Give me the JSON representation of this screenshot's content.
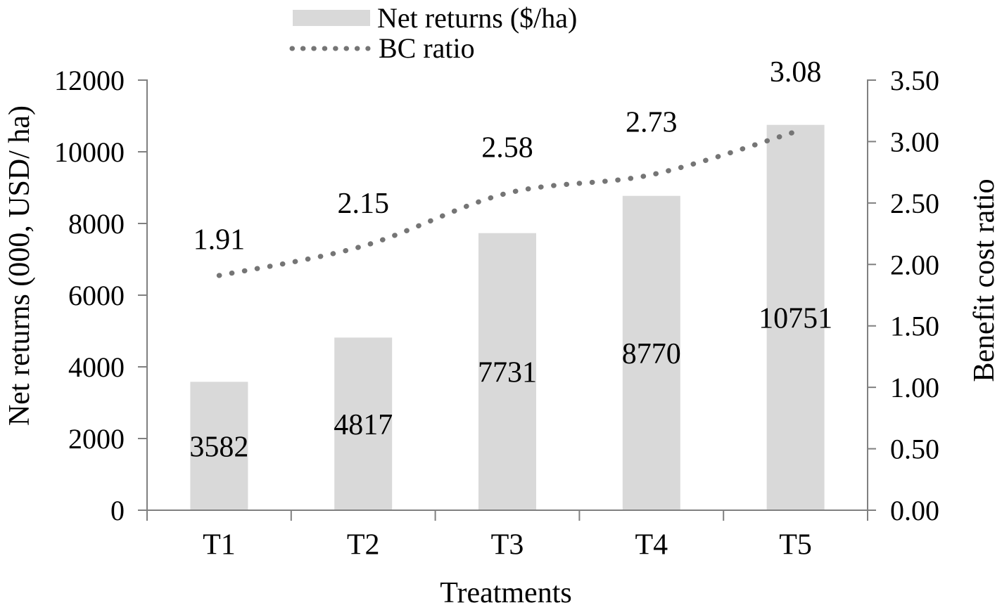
{
  "chart_data": {
    "type": "bar+line combo",
    "title": "",
    "xlabel": "Treatments",
    "ylabel_left": "Net returns (000, USD/ ha)",
    "ylabel_right": "Benefit cost ratio",
    "categories": [
      "T1",
      "T2",
      "T3",
      "T4",
      "T5"
    ],
    "series": [
      {
        "name": "Net returns ($/ha)",
        "type": "bar",
        "axis": "left",
        "values": [
          3582,
          4817,
          7731,
          8770,
          10751
        ],
        "data_labels": [
          "3582",
          "4817",
          "7731",
          "8770",
          "10751"
        ],
        "color": "#d9d9d9"
      },
      {
        "name": "BC ratio",
        "type": "dotted-line",
        "axis": "right",
        "values": [
          1.91,
          2.15,
          2.58,
          2.73,
          3.08
        ],
        "data_labels": [
          "1.91",
          "2.15",
          "2.58",
          "2.73",
          "3.08"
        ],
        "color": "#757575"
      }
    ],
    "left_axis": {
      "min": 0,
      "max": 12000,
      "step": 2000,
      "tick_labels": [
        "0",
        "2000",
        "4000",
        "6000",
        "8000",
        "10000",
        "12000"
      ]
    },
    "right_axis": {
      "min": 0,
      "max": 3.5,
      "step": 0.5,
      "tick_labels": [
        "0.00",
        "0.50",
        "1.00",
        "1.50",
        "2.00",
        "2.50",
        "3.00",
        "3.50"
      ]
    },
    "grid": false,
    "legend_position": "top-center",
    "legend": [
      "Net returns ($/ha)",
      "BC ratio"
    ]
  },
  "colors": {
    "bar": "#d9d9d9",
    "line_dots": "#757575",
    "axis": "#808080",
    "text": "#000000",
    "background": "#ffffff"
  }
}
